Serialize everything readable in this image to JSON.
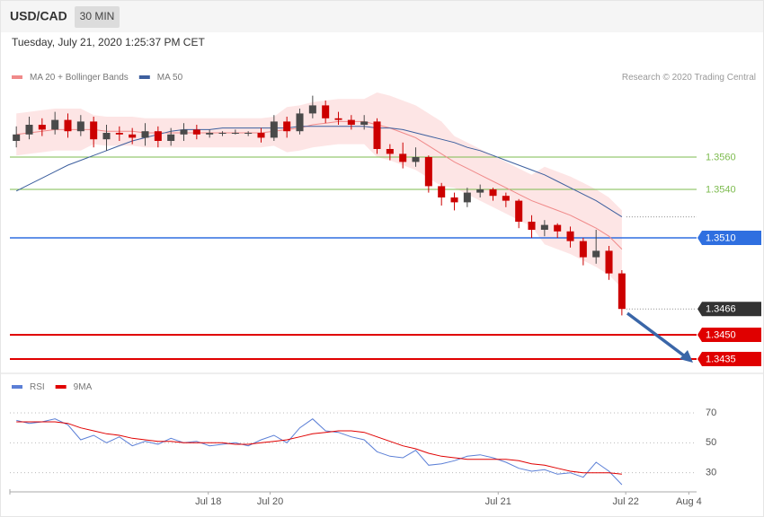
{
  "header": {
    "symbol": "USD/CAD",
    "timeframe": "30 MIN",
    "timestamp": "Tuesday, July 21, 2020 1:25:37 PM CET"
  },
  "chart_data": [
    {
      "type": "candlestick",
      "annotation": "Research © 2020 Trading Central",
      "up_color": "#4a4a4a",
      "down_color": "#cc0000",
      "xlim": [
        -0.5,
        52.8
      ],
      "ylim": [
        1.343,
        1.3625
      ],
      "open": [
        1.357,
        1.3574,
        1.358,
        1.3577,
        1.3583,
        1.3576,
        1.3582,
        1.3571,
        1.3575,
        1.3574,
        1.3572,
        1.3576,
        1.357,
        1.3574,
        1.3577,
        1.3574,
        1.3575,
        1.3575,
        1.3575,
        1.3575,
        1.3572,
        1.3582,
        1.3576,
        1.3587,
        1.3592,
        1.3584,
        1.3583,
        1.358,
        1.3582,
        1.3565,
        1.3562,
        1.3557,
        1.356,
        1.3542,
        1.3535,
        1.3532,
        1.3538,
        1.354,
        1.3536,
        1.3533,
        1.352,
        1.3515,
        1.3518,
        1.3514,
        1.3508,
        1.3498,
        1.3502,
        1.3488
      ],
      "high": [
        1.3579,
        1.3585,
        1.3584,
        1.3588,
        1.3587,
        1.3586,
        1.3585,
        1.358,
        1.3579,
        1.3578,
        1.3581,
        1.3579,
        1.3578,
        1.3581,
        1.358,
        1.3577,
        1.3576,
        1.3577,
        1.3576,
        1.3578,
        1.3586,
        1.3585,
        1.359,
        1.3598,
        1.3595,
        1.3588,
        1.3586,
        1.3586,
        1.3584,
        1.3568,
        1.3569,
        1.3566,
        1.3561,
        1.3544,
        1.3538,
        1.3541,
        1.3543,
        1.3541,
        1.3538,
        1.3534,
        1.3524,
        1.3521,
        1.3519,
        1.3517,
        1.351,
        1.3515,
        1.3505,
        1.349
      ],
      "low": [
        1.3566,
        1.3571,
        1.3573,
        1.3574,
        1.3572,
        1.3573,
        1.3566,
        1.3564,
        1.357,
        1.3568,
        1.3567,
        1.3566,
        1.3567,
        1.357,
        1.3571,
        1.3572,
        1.3573,
        1.3574,
        1.3573,
        1.3569,
        1.357,
        1.3572,
        1.3574,
        1.3584,
        1.3581,
        1.358,
        1.3577,
        1.3577,
        1.3562,
        1.3558,
        1.3553,
        1.3554,
        1.3538,
        1.353,
        1.3527,
        1.3529,
        1.3535,
        1.3533,
        1.3529,
        1.3516,
        1.351,
        1.3511,
        1.351,
        1.3504,
        1.3493,
        1.3494,
        1.3484,
        1.3462
      ],
      "close": [
        1.3574,
        1.358,
        1.3577,
        1.3583,
        1.3576,
        1.3582,
        1.3571,
        1.3575,
        1.3574,
        1.3572,
        1.3576,
        1.357,
        1.3574,
        1.3577,
        1.3574,
        1.3575,
        1.3575,
        1.3575,
        1.3575,
        1.3572,
        1.3582,
        1.3576,
        1.3587,
        1.3592,
        1.3584,
        1.3583,
        1.358,
        1.3582,
        1.3565,
        1.3562,
        1.3557,
        1.356,
        1.3542,
        1.3535,
        1.3532,
        1.3538,
        1.354,
        1.3536,
        1.3533,
        1.352,
        1.3515,
        1.3518,
        1.3514,
        1.3508,
        1.3498,
        1.3502,
        1.3488,
        1.3466
      ],
      "series": [
        {
          "name": "MA 20 + Bollinger Bands",
          "color": "#f08a8a",
          "band_color": "#fde0e0",
          "values": [
            1.3574,
            1.3575,
            1.3576,
            1.3577,
            1.3577,
            1.3577,
            1.3577,
            1.3576,
            1.3576,
            1.3576,
            1.3575,
            1.3575,
            1.3575,
            1.3575,
            1.3575,
            1.3575,
            1.3575,
            1.3575,
            1.3575,
            1.3575,
            1.3576,
            1.3577,
            1.3578,
            1.358,
            1.3581,
            1.3582,
            1.3582,
            1.3582,
            1.358,
            1.3578,
            1.3575,
            1.3572,
            1.3567,
            1.3562,
            1.3557,
            1.3553,
            1.3549,
            1.3545,
            1.3541,
            1.3537,
            1.3533,
            1.353,
            1.3527,
            1.3524,
            1.352,
            1.3516,
            1.3511,
            1.3503
          ],
          "upper": [
            1.3587,
            1.3588,
            1.3589,
            1.359,
            1.359,
            1.359,
            1.3586,
            1.3585,
            1.3585,
            1.3585,
            1.3584,
            1.3584,
            1.3584,
            1.3584,
            1.3584,
            1.3584,
            1.3584,
            1.3584,
            1.3584,
            1.3584,
            1.3585,
            1.3591,
            1.3592,
            1.3594,
            1.3595,
            1.3596,
            1.3596,
            1.3596,
            1.36,
            1.3598,
            1.3595,
            1.3592,
            1.3587,
            1.3582,
            1.3573,
            1.3569,
            1.3565,
            1.3561,
            1.3557,
            1.3553,
            1.3549,
            1.3554,
            1.3551,
            1.3548,
            1.3544,
            1.354,
            1.3535,
            1.3527
          ],
          "lower": [
            1.3561,
            1.3562,
            1.3563,
            1.3564,
            1.3564,
            1.3564,
            1.3568,
            1.3567,
            1.3567,
            1.3567,
            1.3566,
            1.3566,
            1.3566,
            1.3566,
            1.3566,
            1.3566,
            1.3566,
            1.3566,
            1.3566,
            1.3566,
            1.3567,
            1.3563,
            1.3564,
            1.3566,
            1.3567,
            1.3568,
            1.3568,
            1.3568,
            1.356,
            1.3558,
            1.3555,
            1.3552,
            1.3547,
            1.3542,
            1.3541,
            1.3537,
            1.3533,
            1.3529,
            1.3525,
            1.3521,
            1.3517,
            1.3506,
            1.3503,
            1.35,
            1.3496,
            1.3492,
            1.3487,
            1.3479
          ]
        },
        {
          "name": "MA 50",
          "color": "#3d5f9e",
          "values": [
            1.3539,
            1.3543,
            1.3547,
            1.3551,
            1.3555,
            1.3558,
            1.3561,
            1.3564,
            1.3567,
            1.357,
            1.3572,
            1.3574,
            1.3576,
            1.3577,
            1.3577,
            1.3577,
            1.3578,
            1.3578,
            1.3578,
            1.3578,
            1.3578,
            1.3578,
            1.3579,
            1.3579,
            1.3579,
            1.3579,
            1.3579,
            1.3579,
            1.3578,
            1.3578,
            1.3577,
            1.3575,
            1.3573,
            1.3571,
            1.3569,
            1.3566,
            1.3564,
            1.3561,
            1.3558,
            1.3555,
            1.3552,
            1.3549,
            1.3545,
            1.3541,
            1.3537,
            1.3533,
            1.3528,
            1.3523
          ]
        }
      ],
      "levels": [
        {
          "value": 1.356,
          "label": "1.3560",
          "color": "#7dbb4f",
          "line": "thin",
          "style": "text"
        },
        {
          "value": 1.354,
          "label": "1.3540",
          "color": "#7dbb4f",
          "line": "thin",
          "style": "text"
        },
        {
          "value": 1.351,
          "label": "1.3510",
          "color": "#2f6fe0",
          "line": "solid",
          "style": "box"
        },
        {
          "value": 1.3466,
          "color": "#333333",
          "line": "dotted",
          "style": "box"
        },
        {
          "value": 1.345,
          "label": "1.3450",
          "color": "#e00000",
          "line": "thick",
          "style": "box"
        },
        {
          "value": 1.3435,
          "color": "#e00000",
          "line": "thick",
          "style": "box"
        }
      ]
    },
    {
      "type": "line",
      "xlim": [
        -0.5,
        52.8
      ],
      "ylim": [
        19,
        91
      ],
      "yticks": [
        30,
        50,
        70
      ],
      "grid": true,
      "xticks": [
        {
          "value": 14.9,
          "label": "Jul 18"
        },
        {
          "value": 19.7,
          "label": "Jul 20"
        },
        {
          "value": 37.4,
          "label": "Jul 21"
        },
        {
          "value": 47.3,
          "label": "Jul 22"
        },
        {
          "value": 52.2,
          "label": "Aug 4"
        }
      ],
      "series": [
        {
          "name": "RSI",
          "color": "#5b7fd6",
          "values": [
            65,
            63,
            64,
            66,
            62,
            52,
            55,
            50,
            54,
            48,
            51,
            49,
            53,
            50,
            51,
            48,
            49,
            50,
            48,
            52,
            55,
            50,
            60,
            66,
            58,
            57,
            54,
            52,
            44,
            41,
            40,
            45,
            35,
            36,
            38,
            41,
            42,
            40,
            37,
            33,
            31,
            32,
            29,
            30,
            27,
            37,
            31,
            22
          ]
        },
        {
          "name": "9MA",
          "color": "#e00000",
          "values": [
            64,
            64,
            64,
            64,
            63,
            60,
            58,
            56,
            55,
            53,
            52,
            51,
            51,
            50,
            50,
            50,
            50,
            49,
            49,
            50,
            51,
            52,
            54,
            56,
            57,
            58,
            58,
            57,
            54,
            51,
            48,
            46,
            43,
            41,
            40,
            39,
            39,
            39,
            39,
            38,
            36,
            35,
            33,
            31,
            30,
            30,
            30,
            29
          ]
        }
      ]
    }
  ]
}
